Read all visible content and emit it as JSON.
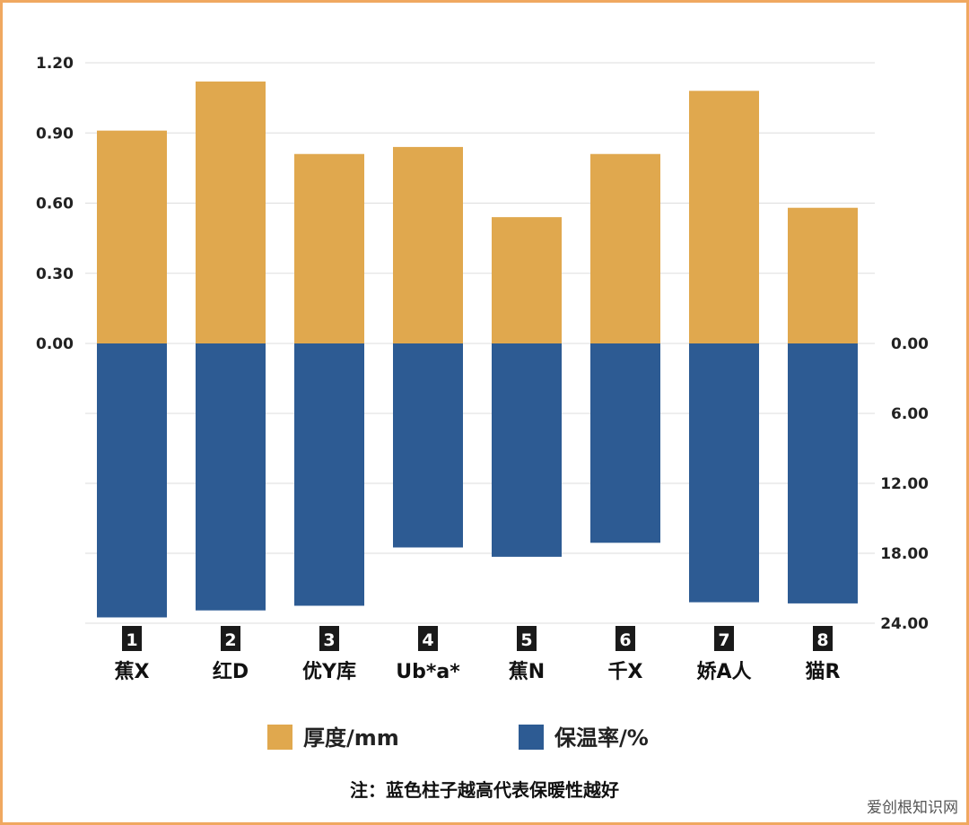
{
  "chart_data": {
    "type": "bar",
    "categories": [
      "蕉X",
      "红D",
      "优Y库",
      "Ub*a*",
      "蕉N",
      "千X",
      "娇A人",
      "猫R"
    ],
    "category_numbers": [
      "1",
      "2",
      "3",
      "4",
      "5",
      "6",
      "7",
      "8"
    ],
    "series": [
      {
        "name": "厚度/mm",
        "axis": "left",
        "direction": "up",
        "color": "#E0A84E",
        "values": [
          0.91,
          1.12,
          0.81,
          0.84,
          0.54,
          0.81,
          1.08,
          0.58
        ]
      },
      {
        "name": "保温率/%",
        "axis": "right",
        "direction": "down",
        "color": "#2D5B93",
        "values": [
          23.5,
          22.9,
          22.5,
          17.5,
          18.3,
          17.1,
          22.2,
          22.3
        ]
      }
    ],
    "left_axis": {
      "range": [
        0,
        1.2
      ],
      "ticks": [
        "0.00",
        "0.30",
        "0.60",
        "0.90",
        "1.20"
      ]
    },
    "right_axis": {
      "range": [
        0,
        24
      ],
      "ticks": [
        "0.00",
        "6.00",
        "12.00",
        "18.00",
        "24.00"
      ],
      "inverted": true
    },
    "grid": true,
    "legend_placement": "bottom",
    "note": "注：蓝色柱子越高代表保暖性越好"
  },
  "watermark": "爱创根知识网"
}
